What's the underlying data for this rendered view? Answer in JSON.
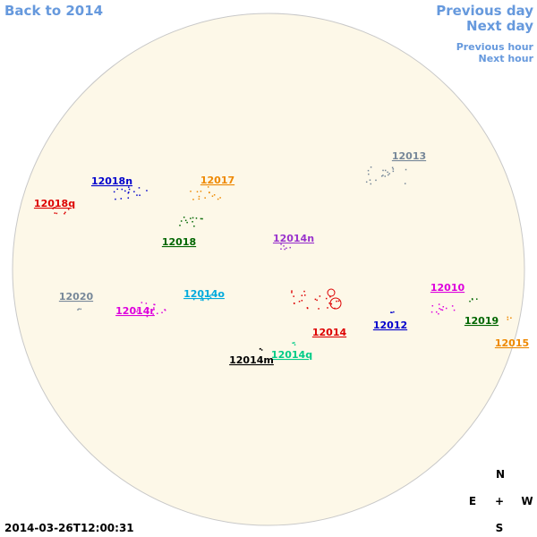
{
  "nav": {
    "back": "Back to 2014",
    "previous_day": "Previous day",
    "next_day": "Next day",
    "previous_hour": "Previous hour",
    "next_hour": "Next hour"
  },
  "timestamp": "2014-03-26T12:00:31",
  "compass": {
    "north": "N",
    "east": "E",
    "center": "+",
    "west": "W",
    "south": "S"
  },
  "regions": [
    {
      "label": "12013",
      "color": "#778899"
    },
    {
      "label": "12018n",
      "color": "#0000cc"
    },
    {
      "label": "12017",
      "color": "#ee8800"
    },
    {
      "label": "12018q",
      "color": "#dd0000"
    },
    {
      "label": "12018",
      "color": "#006600"
    },
    {
      "label": "12014n",
      "color": "#9933cc"
    },
    {
      "label": "12020",
      "color": "#778899"
    },
    {
      "label": "12014o",
      "color": "#00aadd"
    },
    {
      "label": "12014r",
      "color": "#dd00dd"
    },
    {
      "label": "12010",
      "color": "#dd00dd"
    },
    {
      "label": "12019",
      "color": "#006600"
    },
    {
      "label": "12012",
      "color": "#0000cc"
    },
    {
      "label": "12014",
      "color": "#dd0000"
    },
    {
      "label": "12015",
      "color": "#ee8800"
    },
    {
      "label": "12014q",
      "color": "#00cc88"
    },
    {
      "label": "12014m",
      "color": "#000000"
    }
  ]
}
